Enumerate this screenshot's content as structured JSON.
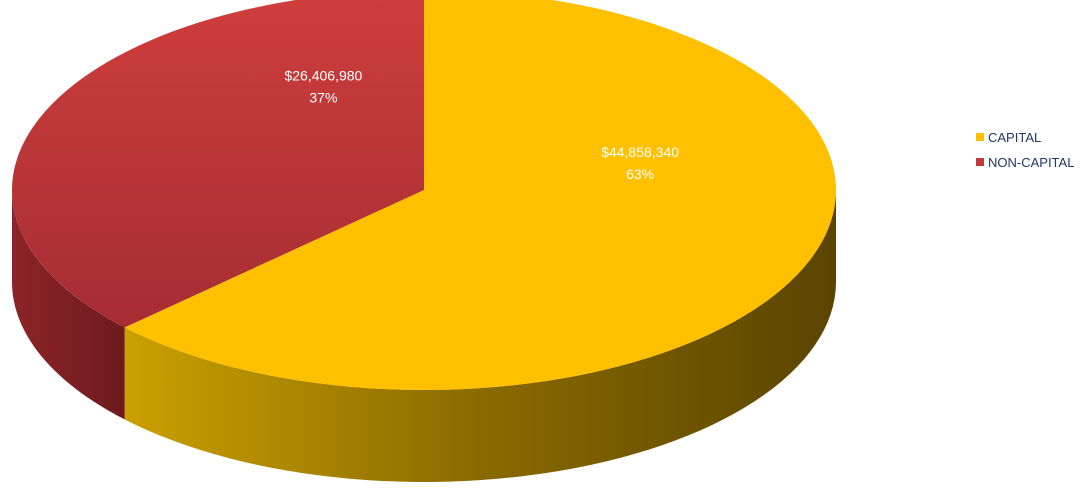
{
  "chart_data": {
    "type": "pie",
    "title": "",
    "categories": [
      "CAPITAL",
      "NON-CAPITAL"
    ],
    "values": [
      44858340,
      26406980
    ],
    "percent": [
      63,
      37
    ],
    "value_labels": [
      "$44,858,340",
      "$26,406,980"
    ],
    "percent_labels": [
      "63%",
      "37%"
    ],
    "colors": [
      "#FFC000",
      "#C0393B"
    ],
    "start": "12 o'clock, clockwise",
    "style": "3d tilted pie",
    "legend": {
      "position": "right",
      "entries": [
        {
          "label": "CAPITAL",
          "color": "#FFC000"
        },
        {
          "label": "NON-CAPITAL",
          "color": "#C0393B"
        }
      ]
    }
  }
}
